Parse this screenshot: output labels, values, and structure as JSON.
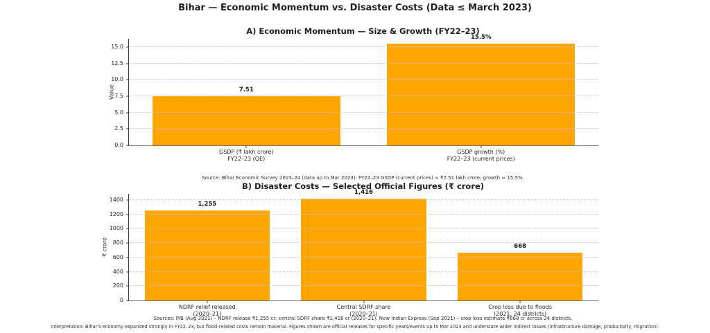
{
  "figure": {
    "title": "Bihar — Economic Momentum vs. Disaster Costs (Data ≤ March 2023)"
  },
  "colors": {
    "bar": "#FFA500",
    "grid": "#c3c3c3",
    "spine": "#3a3a3a",
    "text": "#1f1f1f"
  },
  "chart_data": [
    {
      "id": "momentum",
      "type": "bar",
      "title": "A) Economic Momentum — Size & Growth (FY22–23)",
      "xlabel": "",
      "ylabel": "Value",
      "categories": [
        "GSDP (₹ lakh crore)\nFY22–23 (QE)",
        "GSDP growth (%)\nFY22–23 (current prices)"
      ],
      "values": [
        7.51,
        15.5
      ],
      "value_labels": [
        "7.51",
        "15.5%"
      ],
      "yticks": [
        0,
        2.5,
        5,
        7.5,
        10,
        12.5,
        15
      ],
      "ytick_labels": [
        "0.0",
        "2.5",
        "5.0",
        "7.5",
        "10.0",
        "12.5",
        "15.0"
      ],
      "ylim": [
        0,
        16.28
      ],
      "grid": true,
      "legend": "none",
      "source_note": "Source: Bihar Economic Survey 2023–24 (data up to Mar 2023): FY22–23 GSDP (current prices) ≈ ₹7.51 lakh crore; growth ≈ 15.5%."
    },
    {
      "id": "disaster",
      "type": "bar",
      "title": "B) Disaster Costs — Selected Official Figures (₹ crore)",
      "xlabel": "",
      "ylabel": "₹ crore",
      "categories": [
        "NDRF relief released\n(2020–21)",
        "Central SDRF share\n(2020–21)",
        "Crop loss due to floods\n(2021, 24 districts)"
      ],
      "values": [
        1255,
        1416,
        668
      ],
      "value_labels": [
        "1,255",
        "1,416",
        "668"
      ],
      "yticks": [
        0,
        200,
        400,
        600,
        800,
        1000,
        1200,
        1400
      ],
      "ytick_labels": [
        "0",
        "200",
        "400",
        "600",
        "800",
        "1000",
        "1200",
        "1400"
      ],
      "ylim": [
        0,
        1487
      ],
      "grid": true,
      "legend": "none",
      "source_note": "Sources: PIB (Aug 2021) – NDRF release ₹1,255 cr; central SDRF share ₹1,416 cr (2020–21). New Indian Express (Sep 2021) – crop loss estimate ₹668 cr across 24 districts."
    }
  ],
  "footer": {
    "interpretation": "Interpretation: Bihar's economy expanded strongly in FY22–23, but flood-related costs remain material. Figures shown are official releases for specific years/events up to Mar 2023 and understate wider indirect losses (infrastructure damage, productivity, migration)."
  }
}
